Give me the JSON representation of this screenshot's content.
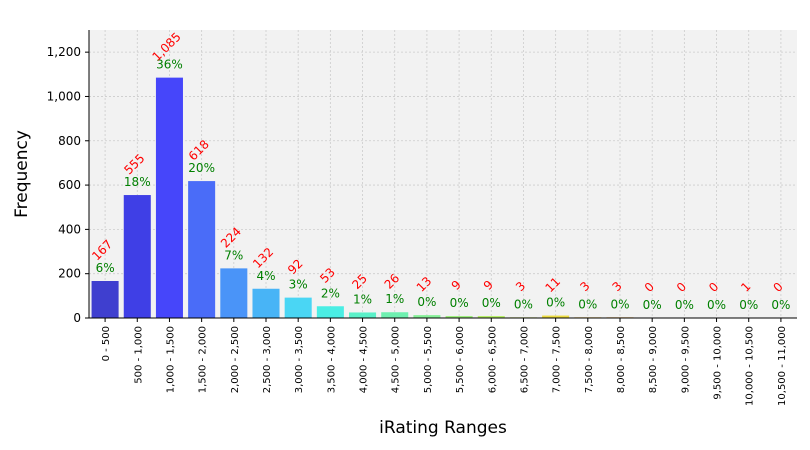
{
  "chart_data": {
    "type": "bar",
    "xlabel": "iRating Ranges",
    "ylabel": "Frequency",
    "ylim": [
      0,
      1300
    ],
    "yticks": [
      0,
      200,
      400,
      600,
      800,
      1000,
      1200
    ],
    "ytick_labels": [
      "0",
      "200",
      "400",
      "600",
      "800",
      "1,000",
      "1,200"
    ],
    "grid": true,
    "categories": [
      "0 - 500",
      "500 - 1,000",
      "1,000 - 1,500",
      "1,500 - 2,000",
      "2,000 - 2,500",
      "2,500 - 3,000",
      "3,000 - 3,500",
      "3,500 - 4,000",
      "4,000 - 4,500",
      "4,500 - 5,000",
      "5,000 - 5,500",
      "5,500 - 6,000",
      "6,000 - 6,500",
      "6,500 - 7,000",
      "7,000 - 7,500",
      "7,500 - 8,000",
      "8,000 - 8,500",
      "8,500 - 9,000",
      "9,000 - 9,500",
      "9,500 - 10,000",
      "10,000 - 10,500",
      "10,500 - 11,000"
    ],
    "values": [
      167,
      555,
      1085,
      618,
      224,
      132,
      92,
      53,
      25,
      26,
      13,
      9,
      9,
      3,
      11,
      3,
      3,
      0,
      0,
      0,
      1,
      0
    ],
    "count_labels": [
      "167",
      "555",
      "1,085",
      "618",
      "224",
      "132",
      "92",
      "53",
      "25",
      "26",
      "13",
      "9",
      "9",
      "3",
      "11",
      "3",
      "3",
      "0",
      "0",
      "0",
      "1",
      "0"
    ],
    "percent_labels": [
      "6%",
      "18%",
      "36%",
      "20%",
      "7%",
      "4%",
      "3%",
      "2%",
      "1%",
      "1%",
      "0%",
      "0%",
      "0%",
      "0%",
      "0%",
      "0%",
      "0%",
      "0%",
      "0%",
      "0%",
      "0%",
      "0%"
    ],
    "bar_colors": [
      "#3f3fcf",
      "#3f3fe6",
      "#4646fa",
      "#4a6cf8",
      "#4a94f8",
      "#48b4f6",
      "#4ad6f4",
      "#4aeee4",
      "#5af0c8",
      "#6ef0b0",
      "#86f098",
      "#a0f080",
      "#b8f06a",
      "#d0ee58",
      "#ecdc40",
      "#f4c030",
      "#f4a028",
      "#f48020",
      "#ee6018",
      "#e04010",
      "#c02008",
      "#a01004"
    ],
    "count_label_color": "#ff0000",
    "percent_label_color": "#008000",
    "plot_background": "#f2f2f2"
  }
}
